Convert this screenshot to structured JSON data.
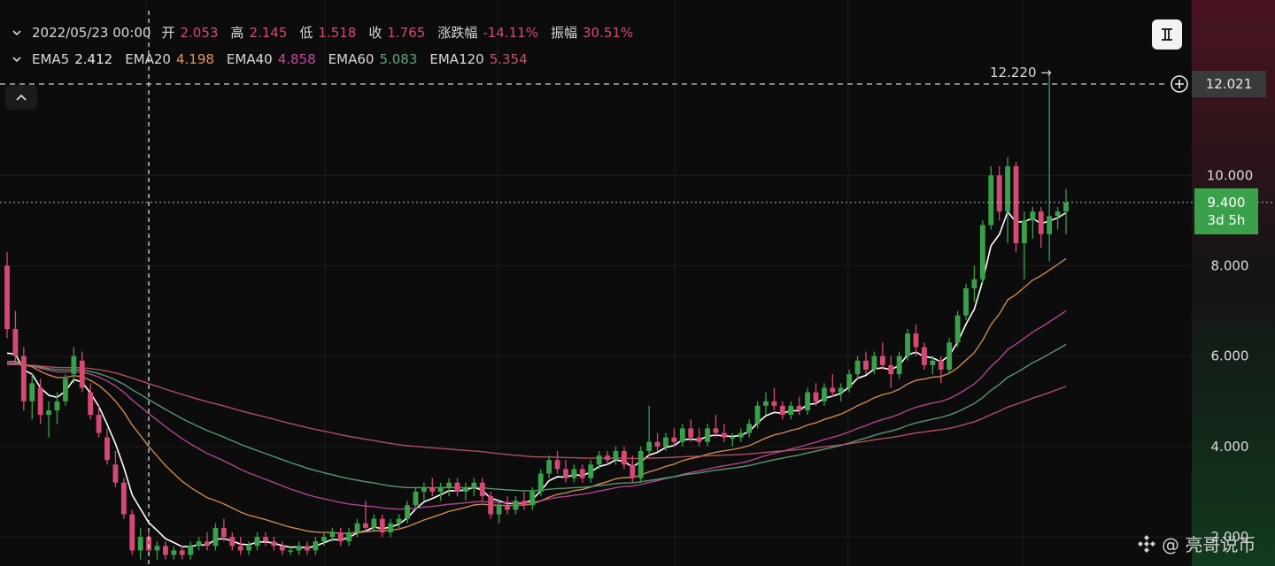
{
  "header": {
    "row1": {
      "date": "2022/05/23 00:00",
      "fields": [
        {
          "label": "开",
          "value": "2.053"
        },
        {
          "label": "高",
          "value": "2.145"
        },
        {
          "label": "低",
          "value": "1.518"
        },
        {
          "label": "收",
          "value": "1.765"
        },
        {
          "label": "涨跌幅",
          "value": "-14.11%"
        },
        {
          "label": "振幅",
          "value": "30.51%"
        }
      ]
    },
    "row2": {
      "fields": [
        {
          "label": "EMA5",
          "value": "2.412"
        },
        {
          "label": "EMA20",
          "value": "4.198"
        },
        {
          "label": "EMA40",
          "value": "4.858"
        },
        {
          "label": "EMA60",
          "value": "5.083"
        },
        {
          "label": "EMA120",
          "value": "5.354"
        }
      ]
    }
  },
  "price_tags": {
    "high_marker": "12.220 →",
    "crosshair_price": "12.021",
    "last_price": "9.400",
    "countdown": "3d 5h"
  },
  "watermark": "@ 亮哥说币",
  "colors": {
    "up": "#3aa14a",
    "down": "#d44a73",
    "ema5": "#ffffff",
    "ema20": "#e0955a",
    "ema40": "#c04aa0",
    "ema60": "#5fa678",
    "ema120": "#c05868",
    "value_text": "#d44a73"
  },
  "chart_data": {
    "type": "candlestick",
    "y_axis": {
      "ticks": [
        "10.000",
        "8.000",
        "6.000",
        "4.000",
        "2.000"
      ],
      "ylim": [
        1.5,
        12.5
      ],
      "scale": "linear"
    },
    "grid": true,
    "candles": [
      {
        "o": 8.0,
        "h": 8.3,
        "l": 6.4,
        "c": 6.6
      },
      {
        "o": 6.6,
        "h": 7.0,
        "l": 5.8,
        "c": 6.0
      },
      {
        "o": 6.0,
        "h": 6.2,
        "l": 4.8,
        "c": 5.0
      },
      {
        "o": 5.0,
        "h": 5.6,
        "l": 4.6,
        "c": 5.4
      },
      {
        "o": 5.3,
        "h": 5.5,
        "l": 4.5,
        "c": 4.7
      },
      {
        "o": 4.7,
        "h": 5.0,
        "l": 4.2,
        "c": 4.8
      },
      {
        "o": 4.8,
        "h": 5.2,
        "l": 4.5,
        "c": 5.0
      },
      {
        "o": 5.0,
        "h": 5.6,
        "l": 4.9,
        "c": 5.5
      },
      {
        "o": 5.6,
        "h": 6.2,
        "l": 5.4,
        "c": 6.0
      },
      {
        "o": 5.9,
        "h": 6.1,
        "l": 5.2,
        "c": 5.3
      },
      {
        "o": 5.2,
        "h": 5.4,
        "l": 4.6,
        "c": 4.7
      },
      {
        "o": 4.7,
        "h": 4.9,
        "l": 4.2,
        "c": 4.3
      },
      {
        "o": 4.2,
        "h": 4.4,
        "l": 3.6,
        "c": 3.7
      },
      {
        "o": 3.6,
        "h": 3.9,
        "l": 3.1,
        "c": 3.2
      },
      {
        "o": 3.2,
        "h": 3.3,
        "l": 2.4,
        "c": 2.5
      },
      {
        "o": 2.5,
        "h": 2.6,
        "l": 1.6,
        "c": 1.7
      },
      {
        "o": 1.7,
        "h": 2.2,
        "l": 1.5,
        "c": 2.0
      },
      {
        "o": 2.0,
        "h": 2.1,
        "l": 1.6,
        "c": 1.7
      },
      {
        "o": 1.7,
        "h": 1.9,
        "l": 1.5,
        "c": 1.8
      },
      {
        "o": 1.8,
        "h": 1.9,
        "l": 1.5,
        "c": 1.6
      },
      {
        "o": 1.6,
        "h": 1.8,
        "l": 1.5,
        "c": 1.7
      },
      {
        "o": 1.7,
        "h": 1.8,
        "l": 1.5,
        "c": 1.6
      },
      {
        "o": 1.6,
        "h": 1.9,
        "l": 1.5,
        "c": 1.8
      },
      {
        "o": 1.8,
        "h": 2.0,
        "l": 1.7,
        "c": 1.9
      },
      {
        "o": 1.9,
        "h": 2.1,
        "l": 1.7,
        "c": 1.8
      },
      {
        "o": 1.8,
        "h": 2.3,
        "l": 1.7,
        "c": 2.2
      },
      {
        "o": 2.2,
        "h": 2.4,
        "l": 1.9,
        "c": 2.0
      },
      {
        "o": 2.0,
        "h": 2.1,
        "l": 1.7,
        "c": 1.8
      },
      {
        "o": 1.8,
        "h": 2.0,
        "l": 1.6,
        "c": 1.7
      },
      {
        "o": 1.7,
        "h": 1.9,
        "l": 1.6,
        "c": 1.8
      },
      {
        "o": 1.8,
        "h": 2.1,
        "l": 1.7,
        "c": 2.0
      },
      {
        "o": 2.0,
        "h": 2.1,
        "l": 1.8,
        "c": 1.9
      },
      {
        "o": 1.9,
        "h": 2.0,
        "l": 1.7,
        "c": 1.8
      },
      {
        "o": 1.8,
        "h": 1.9,
        "l": 1.6,
        "c": 1.7
      },
      {
        "o": 1.7,
        "h": 1.8,
        "l": 1.6,
        "c": 1.7
      },
      {
        "o": 1.7,
        "h": 1.9,
        "l": 1.6,
        "c": 1.8
      },
      {
        "o": 1.8,
        "h": 1.9,
        "l": 1.6,
        "c": 1.7
      },
      {
        "o": 1.7,
        "h": 2.0,
        "l": 1.6,
        "c": 1.9
      },
      {
        "o": 1.9,
        "h": 2.1,
        "l": 1.8,
        "c": 2.0
      },
      {
        "o": 2.0,
        "h": 2.2,
        "l": 1.9,
        "c": 2.1
      },
      {
        "o": 2.1,
        "h": 2.2,
        "l": 1.8,
        "c": 1.9
      },
      {
        "o": 1.9,
        "h": 2.2,
        "l": 1.8,
        "c": 2.1
      },
      {
        "o": 2.1,
        "h": 2.4,
        "l": 2.0,
        "c": 2.3
      },
      {
        "o": 2.3,
        "h": 2.8,
        "l": 2.1,
        "c": 2.2
      },
      {
        "o": 2.2,
        "h": 2.5,
        "l": 2.1,
        "c": 2.4
      },
      {
        "o": 2.4,
        "h": 2.5,
        "l": 2.0,
        "c": 2.1
      },
      {
        "o": 2.1,
        "h": 2.4,
        "l": 2.0,
        "c": 2.3
      },
      {
        "o": 2.3,
        "h": 2.5,
        "l": 2.2,
        "c": 2.4
      },
      {
        "o": 2.4,
        "h": 2.8,
        "l": 2.3,
        "c": 2.7
      },
      {
        "o": 2.7,
        "h": 3.1,
        "l": 2.6,
        "c": 3.0
      },
      {
        "o": 3.0,
        "h": 3.2,
        "l": 2.8,
        "c": 3.1
      },
      {
        "o": 3.1,
        "h": 3.3,
        "l": 2.9,
        "c": 3.0
      },
      {
        "o": 3.0,
        "h": 3.2,
        "l": 2.8,
        "c": 3.1
      },
      {
        "o": 3.1,
        "h": 3.3,
        "l": 2.9,
        "c": 3.2
      },
      {
        "o": 3.2,
        "h": 3.3,
        "l": 2.9,
        "c": 3.0
      },
      {
        "o": 3.0,
        "h": 3.2,
        "l": 2.8,
        "c": 3.1
      },
      {
        "o": 3.1,
        "h": 3.3,
        "l": 2.9,
        "c": 3.2
      },
      {
        "o": 3.2,
        "h": 3.3,
        "l": 2.8,
        "c": 2.9
      },
      {
        "o": 2.9,
        "h": 3.0,
        "l": 2.4,
        "c": 2.5
      },
      {
        "o": 2.5,
        "h": 2.8,
        "l": 2.3,
        "c": 2.7
      },
      {
        "o": 2.7,
        "h": 2.9,
        "l": 2.5,
        "c": 2.6
      },
      {
        "o": 2.6,
        "h": 2.9,
        "l": 2.5,
        "c": 2.8
      },
      {
        "o": 2.8,
        "h": 3.0,
        "l": 2.6,
        "c": 2.7
      },
      {
        "o": 2.7,
        "h": 3.1,
        "l": 2.6,
        "c": 3.0
      },
      {
        "o": 3.0,
        "h": 3.5,
        "l": 2.9,
        "c": 3.4
      },
      {
        "o": 3.4,
        "h": 3.8,
        "l": 3.3,
        "c": 3.7
      },
      {
        "o": 3.7,
        "h": 3.9,
        "l": 3.4,
        "c": 3.5
      },
      {
        "o": 3.5,
        "h": 3.7,
        "l": 3.2,
        "c": 3.3
      },
      {
        "o": 3.3,
        "h": 3.6,
        "l": 3.2,
        "c": 3.5
      },
      {
        "o": 3.5,
        "h": 3.6,
        "l": 3.2,
        "c": 3.3
      },
      {
        "o": 3.3,
        "h": 3.7,
        "l": 3.2,
        "c": 3.6
      },
      {
        "o": 3.6,
        "h": 3.9,
        "l": 3.5,
        "c": 3.8
      },
      {
        "o": 3.8,
        "h": 3.9,
        "l": 3.6,
        "c": 3.7
      },
      {
        "o": 3.7,
        "h": 4.0,
        "l": 3.6,
        "c": 3.9
      },
      {
        "o": 3.9,
        "h": 4.0,
        "l": 3.5,
        "c": 3.6
      },
      {
        "o": 3.6,
        "h": 3.8,
        "l": 3.2,
        "c": 3.3
      },
      {
        "o": 3.3,
        "h": 4.0,
        "l": 3.2,
        "c": 3.9
      },
      {
        "o": 3.9,
        "h": 4.9,
        "l": 3.8,
        "c": 4.1
      },
      {
        "o": 4.1,
        "h": 4.3,
        "l": 3.9,
        "c": 4.0
      },
      {
        "o": 4.0,
        "h": 4.3,
        "l": 3.9,
        "c": 4.2
      },
      {
        "o": 4.2,
        "h": 4.4,
        "l": 4.0,
        "c": 4.1
      },
      {
        "o": 4.1,
        "h": 4.5,
        "l": 4.0,
        "c": 4.4
      },
      {
        "o": 4.4,
        "h": 4.6,
        "l": 4.1,
        "c": 4.2
      },
      {
        "o": 4.2,
        "h": 4.4,
        "l": 4.0,
        "c": 4.1
      },
      {
        "o": 4.1,
        "h": 4.5,
        "l": 4.0,
        "c": 4.4
      },
      {
        "o": 4.4,
        "h": 4.7,
        "l": 4.2,
        "c": 4.3
      },
      {
        "o": 4.3,
        "h": 4.5,
        "l": 4.1,
        "c": 4.2
      },
      {
        "o": 4.2,
        "h": 4.3,
        "l": 4.0,
        "c": 4.2
      },
      {
        "o": 4.2,
        "h": 4.4,
        "l": 4.1,
        "c": 4.3
      },
      {
        "o": 4.3,
        "h": 4.6,
        "l": 4.2,
        "c": 4.5
      },
      {
        "o": 4.5,
        "h": 5.0,
        "l": 4.4,
        "c": 4.9
      },
      {
        "o": 4.9,
        "h": 5.2,
        "l": 4.7,
        "c": 5.0
      },
      {
        "o": 5.0,
        "h": 5.3,
        "l": 4.8,
        "c": 4.9
      },
      {
        "o": 4.9,
        "h": 5.0,
        "l": 4.6,
        "c": 4.7
      },
      {
        "o": 4.7,
        "h": 5.0,
        "l": 4.6,
        "c": 4.9
      },
      {
        "o": 4.9,
        "h": 5.1,
        "l": 4.7,
        "c": 4.8
      },
      {
        "o": 4.8,
        "h": 5.3,
        "l": 4.7,
        "c": 5.2
      },
      {
        "o": 5.2,
        "h": 5.4,
        "l": 4.9,
        "c": 5.0
      },
      {
        "o": 5.0,
        "h": 5.4,
        "l": 4.9,
        "c": 5.3
      },
      {
        "o": 5.3,
        "h": 5.6,
        "l": 5.1,
        "c": 5.2
      },
      {
        "o": 5.2,
        "h": 5.4,
        "l": 5.0,
        "c": 5.3
      },
      {
        "o": 5.3,
        "h": 5.7,
        "l": 5.2,
        "c": 5.6
      },
      {
        "o": 5.6,
        "h": 6.0,
        "l": 5.5,
        "c": 5.9
      },
      {
        "o": 5.9,
        "h": 6.1,
        "l": 5.6,
        "c": 5.7
      },
      {
        "o": 5.7,
        "h": 6.1,
        "l": 5.6,
        "c": 6.0
      },
      {
        "o": 6.0,
        "h": 6.3,
        "l": 5.7,
        "c": 5.8
      },
      {
        "o": 5.8,
        "h": 6.0,
        "l": 5.3,
        "c": 5.6
      },
      {
        "o": 5.6,
        "h": 6.1,
        "l": 5.5,
        "c": 6.0
      },
      {
        "o": 6.0,
        "h": 6.6,
        "l": 5.9,
        "c": 6.5
      },
      {
        "o": 6.5,
        "h": 6.7,
        "l": 6.0,
        "c": 6.2
      },
      {
        "o": 6.2,
        "h": 6.3,
        "l": 5.7,
        "c": 5.8
      },
      {
        "o": 5.8,
        "h": 6.0,
        "l": 5.6,
        "c": 5.9
      },
      {
        "o": 5.9,
        "h": 6.0,
        "l": 5.4,
        "c": 5.7
      },
      {
        "o": 5.7,
        "h": 6.4,
        "l": 5.6,
        "c": 6.3
      },
      {
        "o": 6.3,
        "h": 7.0,
        "l": 6.2,
        "c": 6.9
      },
      {
        "o": 6.9,
        "h": 7.6,
        "l": 6.8,
        "c": 7.5
      },
      {
        "o": 7.5,
        "h": 8.0,
        "l": 7.2,
        "c": 7.7
      },
      {
        "o": 7.7,
        "h": 9.0,
        "l": 7.6,
        "c": 8.9
      },
      {
        "o": 8.9,
        "h": 10.2,
        "l": 8.8,
        "c": 10.0
      },
      {
        "o": 10.0,
        "h": 10.2,
        "l": 9.0,
        "c": 9.2
      },
      {
        "o": 9.2,
        "h": 10.4,
        "l": 8.5,
        "c": 10.2
      },
      {
        "o": 10.2,
        "h": 10.3,
        "l": 8.3,
        "c": 8.5
      },
      {
        "o": 8.5,
        "h": 9.2,
        "l": 7.7,
        "c": 9.0
      },
      {
        "o": 9.0,
        "h": 9.3,
        "l": 8.6,
        "c": 9.2
      },
      {
        "o": 9.2,
        "h": 9.3,
        "l": 8.4,
        "c": 8.7
      },
      {
        "o": 8.7,
        "h": 12.22,
        "l": 8.1,
        "c": 9.1
      },
      {
        "o": 9.1,
        "h": 9.3,
        "l": 8.8,
        "c": 9.2
      },
      {
        "o": 9.2,
        "h": 9.7,
        "l": 8.7,
        "c": 9.4
      }
    ]
  }
}
